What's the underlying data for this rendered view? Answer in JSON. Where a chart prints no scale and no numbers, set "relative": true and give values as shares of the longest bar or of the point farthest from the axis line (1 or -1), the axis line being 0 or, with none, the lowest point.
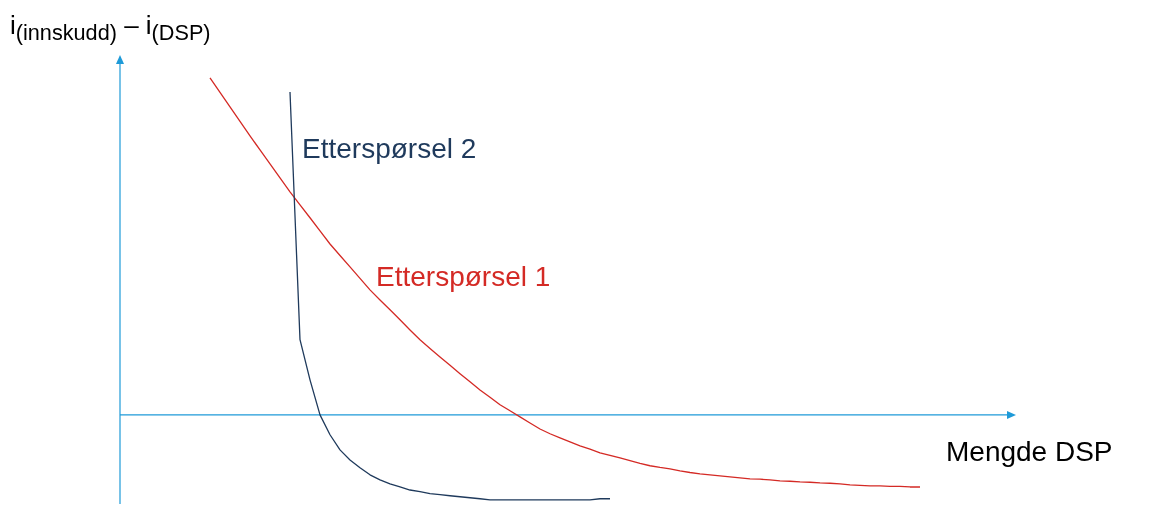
{
  "chart_data": {
    "type": "line",
    "relative": true,
    "ylabel": "i$_{(innskudd)}$ – i$_{(DSP)}$",
    "xlabel": "Mengde DSP",
    "legend": false,
    "marker": "none",
    "ref_lines": [
      {
        "axis": "y",
        "value": 0,
        "color": "#1e9ad8"
      }
    ],
    "categories": [
      null,
      null,
      null,
      null,
      null,
      null,
      null,
      null,
      null,
      null,
      null,
      null,
      null,
      null,
      null,
      null,
      null,
      null,
      null,
      null,
      null,
      null,
      null,
      null,
      null,
      null,
      null,
      null,
      null,
      null,
      null,
      null,
      null,
      null,
      null,
      null,
      null,
      null,
      null,
      null,
      null,
      null,
      null,
      null,
      null,
      null,
      null,
      null,
      null,
      null,
      null,
      null,
      null,
      null,
      null,
      null,
      null,
      null,
      null,
      null,
      null,
      null,
      null,
      null,
      null,
      null,
      null,
      null,
      null,
      null,
      null,
      null,
      null,
      null,
      null,
      null,
      null,
      null,
      null,
      null,
      null,
      null,
      null,
      null,
      null,
      null,
      null,
      null,
      null
    ],
    "series": [
      {
        "name": "Etterspørsel 2",
        "color": "#1f3a5c",
        "values": [
          null,
          null,
          null,
          null,
          null,
          null,
          null,
          null,
          null,
          null,
          null,
          null,
          null,
          null,
          null,
          null,
          null,
          0.958,
          0.223,
          0.104,
          0,
          -0.059,
          -0.104,
          -0.134,
          -0.157,
          -0.178,
          -0.193,
          -0.205,
          -0.214,
          -0.223,
          -0.228,
          -0.234,
          -0.237,
          -0.24,
          -0.243,
          -0.246,
          -0.249,
          -0.252,
          -0.252,
          -0.252,
          -0.252,
          -0.252,
          -0.252,
          -0.252,
          -0.252,
          -0.252,
          -0.252,
          -0.252,
          -0.249,
          -0.249,
          null,
          null,
          null,
          null,
          null,
          null,
          null,
          null,
          null,
          null,
          null,
          null,
          null,
          null,
          null,
          null,
          null,
          null,
          null,
          null,
          null,
          null,
          null,
          null,
          null,
          null,
          null,
          null,
          null,
          null,
          null,
          null,
          null,
          null,
          null,
          null,
          null,
          null,
          null
        ]
      },
      {
        "name": "Etterspørsel 1",
        "color": "#d42a25",
        "values": [
          null,
          null,
          null,
          null,
          null,
          null,
          null,
          null,
          null,
          1,
          0.957,
          0.914,
          0.871,
          0.828,
          0.786,
          0.745,
          0.703,
          0.662,
          0.623,
          0.585,
          0.546,
          0.507,
          0.473,
          0.439,
          0.405,
          0.371,
          0.341,
          0.312,
          0.282,
          0.252,
          0.223,
          0.197,
          0.172,
          0.147,
          0.122,
          0.098,
          0.074,
          0.052,
          0.03,
          0.012,
          -0.006,
          -0.024,
          -0.042,
          -0.056,
          -0.068,
          -0.08,
          -0.092,
          -0.102,
          -0.113,
          -0.12,
          -0.128,
          -0.136,
          -0.144,
          -0.151,
          -0.156,
          -0.16,
          -0.166,
          -0.171,
          -0.175,
          -0.178,
          -0.181,
          -0.184,
          -0.187,
          -0.19,
          -0.191,
          -0.193,
          -0.196,
          -0.197,
          -0.199,
          -0.2,
          -0.202,
          -0.203,
          -0.205,
          -0.208,
          -0.209,
          -0.211,
          -0.211,
          -0.212,
          -0.212,
          -0.214,
          -0.214,
          null,
          null,
          null,
          null,
          null,
          null,
          null,
          null
        ]
      }
    ]
  }
}
